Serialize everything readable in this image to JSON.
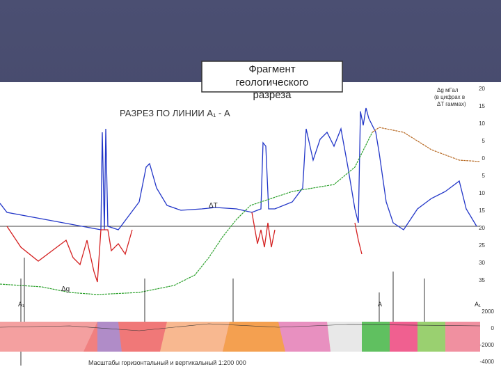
{
  "title_box": {
    "lines": [
      "Фрагмент",
      "геологического",
      "разреза"
    ]
  },
  "section": {
    "title": "РАЗРЕЗ ПО ЛИНИИ А₁ - А",
    "curve_labels": {
      "delta_t": "ΔT",
      "delta_g": "Δg"
    },
    "legend_note": [
      "Δg мГал",
      "(в цифрах в",
      "ΔT гаммах)"
    ],
    "point_labels": [
      "A₁",
      "A",
      "A₁"
    ],
    "right_scale": [
      "20",
      "15",
      "10",
      "5",
      "0",
      "5",
      "10",
      "15",
      "20",
      "25",
      "30",
      "35"
    ],
    "depth_scale": [
      "2000",
      "0",
      "-2000",
      "-4000"
    ],
    "scale_note": "Масштабы горизонтальный и вертикальный 1:200 000"
  }
}
